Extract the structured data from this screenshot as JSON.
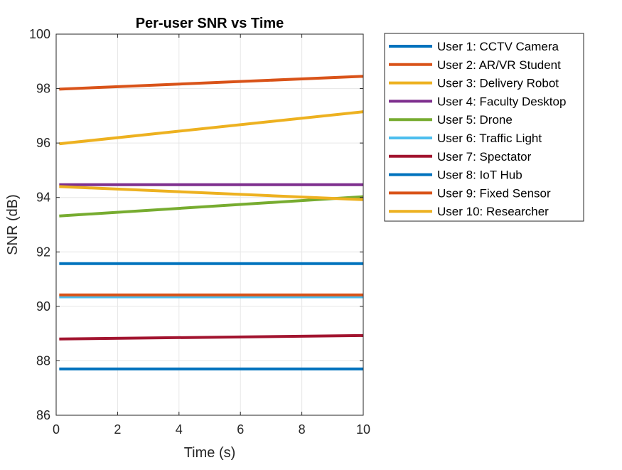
{
  "chart_data": {
    "type": "line",
    "title": "Per-user SNR vs Time",
    "xlabel": "Time (s)",
    "ylabel": "SNR (dB)",
    "xlim": [
      0,
      10
    ],
    "ylim": [
      86,
      100
    ],
    "xticks": [
      "0",
      "2",
      "4",
      "6",
      "8",
      "10"
    ],
    "yticks": [
      "86",
      "88",
      "90",
      "92",
      "94",
      "96",
      "98",
      "100"
    ],
    "grid": true,
    "legend_position": "outside-right",
    "series": [
      {
        "name": "User 1: CCTV Camera",
        "color": "#0072BD",
        "x": [
          0.1,
          10
        ],
        "y": [
          91.57,
          91.57
        ]
      },
      {
        "name": "User 2: AR/VR Student",
        "color": "#D95319",
        "x": [
          0.1,
          10
        ],
        "y": [
          97.98,
          98.45
        ]
      },
      {
        "name": "User 3: Delivery Robot",
        "color": "#EDB120",
        "x": [
          0.1,
          10
        ],
        "y": [
          95.97,
          97.15
        ]
      },
      {
        "name": "User 4: Faculty Desktop",
        "color": "#7E2F8E",
        "x": [
          0.1,
          10
        ],
        "y": [
          94.47,
          94.47
        ]
      },
      {
        "name": "User 5: Drone",
        "color": "#77AC30",
        "x": [
          0.1,
          10
        ],
        "y": [
          93.32,
          94.03
        ]
      },
      {
        "name": "User 6: Traffic Light",
        "color": "#4DBEEE",
        "x": [
          0.1,
          10
        ],
        "y": [
          90.35,
          90.35
        ]
      },
      {
        "name": "User 7: Spectator",
        "color": "#A2142F",
        "x": [
          0.1,
          10
        ],
        "y": [
          88.8,
          88.93
        ]
      },
      {
        "name": "User 8: IoT Hub",
        "color": "#0072BD",
        "x": [
          0.1,
          10
        ],
        "y": [
          87.7,
          87.7
        ]
      },
      {
        "name": "User 9: Fixed Sensor",
        "color": "#D95319",
        "x": [
          0.1,
          10
        ],
        "y": [
          90.42,
          90.42
        ]
      },
      {
        "name": "User 10: Researcher",
        "color": "#EDB120",
        "x": [
          0.1,
          10
        ],
        "y": [
          94.4,
          93.92
        ]
      }
    ]
  }
}
